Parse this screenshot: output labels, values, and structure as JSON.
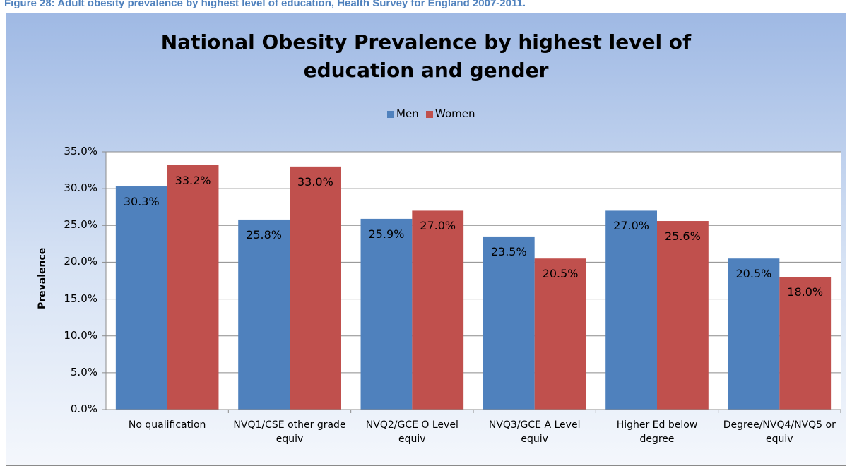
{
  "caption": "Figure 28: Adult obesity prevalence by highest level of education, Health Survey for England 2007-2011.",
  "chart_data": {
    "type": "bar",
    "title": "National Obesity Prevalence by highest level of education and gender",
    "y_label": "Prevalence",
    "categories": [
      "No qualification",
      "NVQ1/CSE other grade equiv",
      "NVQ2/GCE O Level equiv",
      "NVQ3/GCE A Level equiv",
      "Higher Ed below degree",
      "Degree/NVQ4/NVQ5 or equiv"
    ],
    "series": [
      {
        "name": "Men",
        "color": "#4f81bd",
        "values": [
          30.3,
          25.8,
          25.9,
          23.5,
          27.0,
          20.5
        ],
        "value_labels": [
          "30.3%",
          "25.8%",
          "25.9%",
          "23.5%",
          "27.0%",
          "20.5%"
        ]
      },
      {
        "name": "Women",
        "color": "#c0504d",
        "values": [
          33.2,
          33.0,
          27.0,
          20.5,
          25.6,
          18.0
        ],
        "value_labels": [
          "33.2%",
          "33.0%",
          "27.0%",
          "20.5%",
          "25.6%",
          "18.0%"
        ]
      }
    ],
    "ylim": [
      0,
      35
    ],
    "yticks": [
      {
        "value": 0,
        "label": "0.0%"
      },
      {
        "value": 5,
        "label": "5.0%"
      },
      {
        "value": 10,
        "label": "10.0%"
      },
      {
        "value": 15,
        "label": "15.0%"
      },
      {
        "value": 20,
        "label": "20.0%"
      },
      {
        "value": 25,
        "label": "25.0%"
      },
      {
        "value": 30,
        "label": "30.0%"
      },
      {
        "value": 35,
        "label": "35.0%"
      }
    ],
    "grid": true,
    "legend": "top"
  }
}
